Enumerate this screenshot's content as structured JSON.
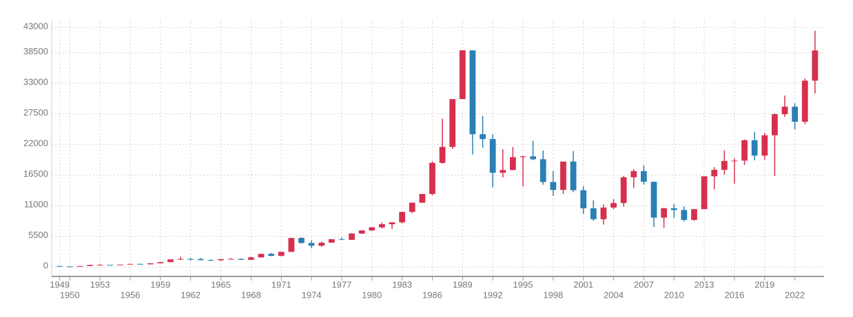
{
  "chart_data": {
    "type": "candlestick",
    "x": [
      1949,
      1950,
      1951,
      1952,
      1953,
      1954,
      1955,
      1956,
      1957,
      1958,
      1959,
      1960,
      1961,
      1962,
      1963,
      1964,
      1965,
      1966,
      1967,
      1968,
      1969,
      1970,
      1971,
      1972,
      1973,
      1974,
      1975,
      1976,
      1977,
      1978,
      1979,
      1980,
      1981,
      1982,
      1983,
      1984,
      1985,
      1986,
      1987,
      1988,
      1989,
      1990,
      1991,
      1992,
      1993,
      1994,
      1995,
      1996,
      1997,
      1998,
      1999,
      2000,
      2001,
      2002,
      2003,
      2004,
      2005,
      2006,
      2007,
      2008,
      2009,
      2010,
      2011,
      2012,
      2013,
      2014,
      2015,
      2016,
      2017,
      2018,
      2019,
      2020,
      2021,
      2022,
      2023,
      2024
    ],
    "open": [
      176,
      109,
      101,
      166,
      362,
      377,
      356,
      425,
      549,
      474,
      666,
      874,
      1356,
      1432,
      1420,
      1225,
      1216,
      1417,
      1452,
      1284,
      1715,
      2358,
      1987,
      2714,
      5208,
      4307,
      3817,
      4359,
      4990,
      4866,
      6002,
      6569,
      7116,
      7681,
      8016,
      9893,
      11543,
      13113,
      18701,
      21564,
      30159,
      38916,
      23849,
      22984,
      16925,
      17417,
      19723,
      19868,
      19361,
      15259,
      13842,
      18934,
      13786,
      10543,
      8579,
      10677,
      11489,
      16111,
      17226,
      15308,
      8860,
      10546,
      10229,
      8455,
      10395,
      16291,
      17451,
      19034,
      19114,
      22765,
      20015,
      23657,
      27444,
      28792,
      26095,
      33464
    ],
    "high": [
      176,
      114,
      166,
      362,
      474,
      377,
      425,
      550,
      595,
      666,
      874,
      1356,
      1829,
      1589,
      1634,
      1369,
      1418,
      1588,
      1506,
      1851,
      2358,
      2534,
      2740,
      5208,
      5359,
      4788,
      4564,
      4990,
      5287,
      6097,
      6590,
      7188,
      8019,
      8026,
      9893,
      11577,
      13129,
      18936,
      26646,
      30159,
      38957,
      38916,
      27147,
      23801,
      21148,
      21552,
      20011,
      22666,
      20910,
      17264,
      18934,
      20833,
      14529,
      11979,
      11238,
      12163,
      16344,
      17563,
      18262,
      15308,
      10640,
      11339,
      10857,
      10395,
      16291,
      17935,
      20953,
      19494,
      22939,
      24271,
      24092,
      27568,
      30796,
      29389,
      33853,
      42427
    ],
    "low": [
      85,
      85,
      101,
      166,
      295,
      315,
      350,
      425,
      471,
      474,
      666,
      874,
      1256,
      1216,
      1200,
      1202,
      1020,
      1390,
      1250,
      1280,
      1710,
      1929,
      1981,
      2712,
      4188,
      3355,
      3628,
      4356,
      4866,
      4866,
      5930,
      6475,
      6957,
      6850,
      7803,
      9703,
      11545,
      12881,
      18544,
      21217,
      30159,
      20221,
      21456,
      14309,
      16078,
      17370,
      14485,
      19161,
      14775,
      12787,
      13122,
      13423,
      9504,
      8303,
      7608,
      10365,
      10825,
      14218,
      14837,
      7163,
      7055,
      8824,
      8160,
      8296,
      10395,
      13910,
      16593,
      14952,
      18335,
      19156,
      19241,
      16358,
      26954,
      24718,
      25662,
      31156
    ],
    "close": [
      109,
      101,
      166,
      362,
      377,
      356,
      425,
      549,
      474,
      666,
      874,
      1356,
      1432,
      1420,
      1225,
      1216,
      1417,
      1452,
      1284,
      1715,
      2358,
      1987,
      2714,
      5208,
      4307,
      3817,
      4359,
      4990,
      4866,
      6002,
      6569,
      7116,
      7681,
      8016,
      9893,
      11543,
      13113,
      18701,
      21564,
      30159,
      38916,
      23849,
      22984,
      16925,
      17417,
      19723,
      19868,
      19361,
      15259,
      13842,
      18934,
      13786,
      10543,
      8579,
      10677,
      11489,
      16111,
      17226,
      15308,
      8860,
      10546,
      10229,
      8455,
      10395,
      16291,
      17451,
      19034,
      19114,
      22765,
      20015,
      23657,
      27444,
      28792,
      26095,
      33464,
      38900
    ],
    "up_color": "#d6304f",
    "down_color": "#2b7fb5",
    "xlim": [
      1948.2,
      2024.9
    ],
    "xticks": [
      1949,
      1950,
      1953,
      1956,
      1959,
      1962,
      1965,
      1968,
      1971,
      1974,
      1977,
      1980,
      1983,
      1986,
      1989,
      1992,
      1995,
      1998,
      2001,
      2004,
      2007,
      2010,
      2013,
      2016,
      2019,
      2022
    ],
    "ylim": [
      -1700,
      44500
    ],
    "yticks": [
      0,
      5500,
      11000,
      16500,
      22000,
      27500,
      33000,
      38500,
      43000
    ],
    "grid": true
  }
}
